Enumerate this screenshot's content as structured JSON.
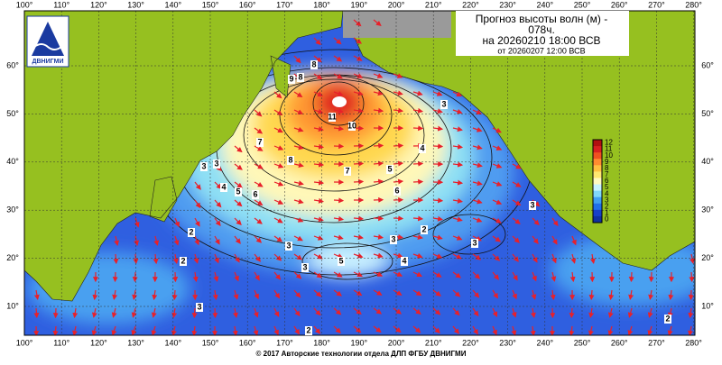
{
  "header": {
    "title_lines": [
      "Прогноз высоты волн (м) -",
      "078ч.",
      "на 20260210 18:00 ВСВ",
      "от 20260207 12:00 ВСВ"
    ]
  },
  "logo": {
    "text": "ДВНИГМИ"
  },
  "map": {
    "lon_labels": [
      "100°",
      "110°",
      "120°",
      "130°",
      "140°",
      "150°",
      "160°",
      "170°",
      "180°",
      "190°",
      "200°",
      "210°",
      "220°",
      "230°",
      "240°",
      "250°",
      "260°",
      "270°",
      "280°"
    ],
    "lat_labels": [
      "60°",
      "50°",
      "40°",
      "30°",
      "20°",
      "10°"
    ],
    "contour_labels": [
      "9",
      "8",
      "8",
      "11",
      "10",
      "3",
      "7",
      "8",
      "7",
      "4",
      "6",
      "5",
      "6",
      "5",
      "4",
      "3",
      "2",
      "3",
      "3",
      "2",
      "3",
      "3",
      "4",
      "5",
      "3",
      "2",
      "3",
      "2",
      "2",
      "3"
    ]
  },
  "colorbar": {
    "labels": [
      "12",
      "11",
      "10",
      "9",
      "8",
      "7",
      "6",
      "5",
      "4",
      "3",
      "2",
      "1",
      "0"
    ]
  },
  "footer": {
    "copyright": "© 2017 Авторские технологии отдела ДЛП ФГБУ ДВНИГМИ"
  }
}
